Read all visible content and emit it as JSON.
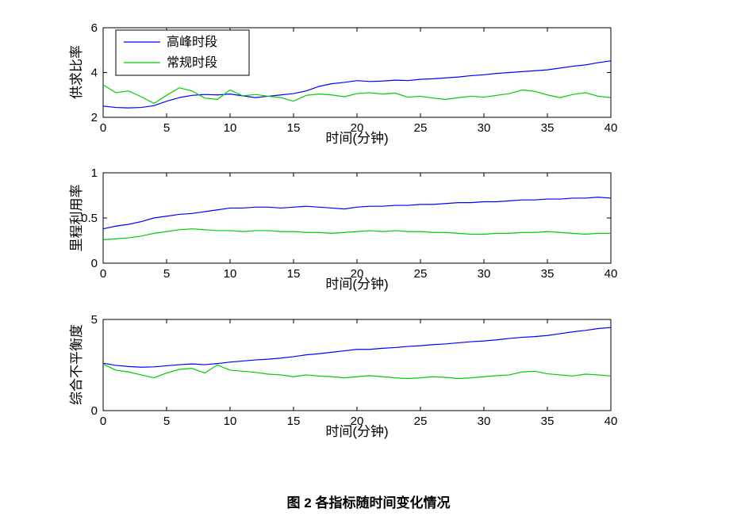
{
  "caption": "图 2  各指标随时间变化情况",
  "colors": {
    "peak": "#0000ff",
    "regular": "#00cc00",
    "axis": "#000000",
    "background": "#ffffff"
  },
  "chart_data": [
    {
      "type": "line",
      "title": "",
      "xlabel": "时间(分钟)",
      "ylabel": "供求比率",
      "xlim": [
        0,
        40
      ],
      "ylim": [
        2,
        6
      ],
      "xticks": [
        0,
        5,
        10,
        15,
        20,
        25,
        30,
        35,
        40
      ],
      "yticks": [
        2,
        4,
        6
      ],
      "x_start": 0,
      "x_step": 1,
      "grid": false,
      "legend": {
        "show": true,
        "position": "top-left",
        "entries": [
          "高峰时段",
          "常规时段"
        ]
      },
      "series": [
        {
          "name": "高峰时段",
          "color": "#0000ff",
          "values": [
            2.5,
            2.44,
            2.42,
            2.44,
            2.52,
            2.72,
            2.88,
            2.98,
            3.02,
            3.0,
            3.04,
            2.96,
            2.88,
            2.94,
            3.0,
            3.06,
            3.18,
            3.38,
            3.5,
            3.56,
            3.64,
            3.6,
            3.62,
            3.66,
            3.64,
            3.7,
            3.72,
            3.76,
            3.8,
            3.86,
            3.9,
            3.96,
            4.0,
            4.04,
            4.08,
            4.12,
            4.2,
            4.28,
            4.34,
            4.44,
            4.52
          ]
        },
        {
          "name": "常规时段",
          "color": "#00cc00",
          "values": [
            3.45,
            3.1,
            3.18,
            2.92,
            2.62,
            2.98,
            3.32,
            3.18,
            2.86,
            2.8,
            3.22,
            2.96,
            3.02,
            2.94,
            2.88,
            2.72,
            2.98,
            3.04,
            3.0,
            2.92,
            3.06,
            3.1,
            3.04,
            3.08,
            2.9,
            2.94,
            2.86,
            2.8,
            2.88,
            2.94,
            2.9,
            2.98,
            3.06,
            3.22,
            3.16,
            3.0,
            2.88,
            3.02,
            3.1,
            2.94,
            2.88
          ]
        }
      ]
    },
    {
      "type": "line",
      "title": "",
      "xlabel": "时间(分钟)",
      "ylabel": "里程利用率",
      "xlim": [
        0,
        40
      ],
      "ylim": [
        0,
        1
      ],
      "xticks": [
        0,
        5,
        10,
        15,
        20,
        25,
        30,
        35,
        40
      ],
      "yticks": [
        0,
        0.5,
        1
      ],
      "x_start": 0,
      "x_step": 1,
      "grid": false,
      "legend": {
        "show": false,
        "position": "",
        "entries": []
      },
      "series": [
        {
          "name": "高峰时段",
          "color": "#0000ff",
          "values": [
            0.38,
            0.41,
            0.43,
            0.46,
            0.5,
            0.52,
            0.54,
            0.55,
            0.57,
            0.59,
            0.61,
            0.61,
            0.62,
            0.62,
            0.61,
            0.62,
            0.63,
            0.62,
            0.61,
            0.6,
            0.62,
            0.63,
            0.63,
            0.64,
            0.64,
            0.65,
            0.65,
            0.66,
            0.67,
            0.67,
            0.68,
            0.68,
            0.69,
            0.7,
            0.7,
            0.71,
            0.71,
            0.72,
            0.72,
            0.73,
            0.72
          ]
        },
        {
          "name": "常规时段",
          "color": "#00cc00",
          "values": [
            0.26,
            0.27,
            0.28,
            0.3,
            0.33,
            0.35,
            0.37,
            0.38,
            0.37,
            0.36,
            0.36,
            0.35,
            0.36,
            0.36,
            0.35,
            0.35,
            0.34,
            0.34,
            0.33,
            0.34,
            0.35,
            0.36,
            0.35,
            0.36,
            0.35,
            0.35,
            0.34,
            0.34,
            0.33,
            0.32,
            0.32,
            0.33,
            0.33,
            0.34,
            0.34,
            0.35,
            0.34,
            0.33,
            0.32,
            0.33,
            0.33
          ]
        }
      ]
    },
    {
      "type": "line",
      "title": "",
      "xlabel": "时间(分钟)",
      "ylabel": "综合不平衡度",
      "xlim": [
        0,
        40
      ],
      "ylim": [
        0,
        5
      ],
      "xticks": [
        0,
        5,
        10,
        15,
        20,
        25,
        30,
        35,
        40
      ],
      "yticks": [
        0,
        5
      ],
      "x_start": 0,
      "x_step": 1,
      "grid": false,
      "legend": {
        "show": false,
        "position": "",
        "entries": []
      },
      "series": [
        {
          "name": "高峰时段",
          "color": "#0000ff",
          "values": [
            2.6,
            2.48,
            2.42,
            2.38,
            2.4,
            2.46,
            2.52,
            2.56,
            2.52,
            2.58,
            2.66,
            2.72,
            2.78,
            2.82,
            2.88,
            2.96,
            3.06,
            3.12,
            3.2,
            3.28,
            3.36,
            3.36,
            3.42,
            3.46,
            3.52,
            3.56,
            3.62,
            3.66,
            3.72,
            3.78,
            3.82,
            3.88,
            3.96,
            4.02,
            4.06,
            4.12,
            4.22,
            4.32,
            4.4,
            4.5,
            4.56
          ]
        },
        {
          "name": "常规时段",
          "color": "#00cc00",
          "values": [
            2.55,
            2.22,
            2.12,
            1.96,
            1.8,
            2.06,
            2.26,
            2.32,
            2.06,
            2.5,
            2.22,
            2.16,
            2.1,
            2.0,
            1.96,
            1.86,
            1.96,
            1.9,
            1.86,
            1.8,
            1.86,
            1.92,
            1.86,
            1.8,
            1.76,
            1.8,
            1.86,
            1.82,
            1.76,
            1.8,
            1.86,
            1.92,
            1.96,
            2.12,
            2.16,
            2.02,
            1.96,
            1.9,
            2.0,
            1.96,
            1.9
          ]
        }
      ]
    }
  ]
}
